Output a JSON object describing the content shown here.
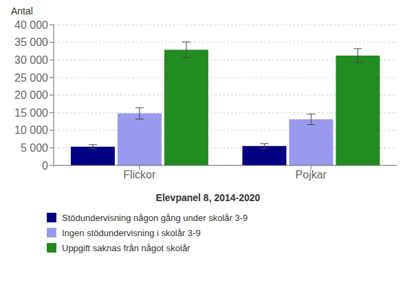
{
  "chart_data": {
    "type": "bar",
    "subtitle": "Elevpanel 8, 2014-2020",
    "ylabel": "Antal",
    "categories": [
      "Flickor",
      "Pojkar"
    ],
    "series": [
      {
        "name": "Stödundervisning någon gång under skolår 3-9",
        "color": "#000080",
        "values": [
          5300,
          5500
        ],
        "errors": [
          600,
          700
        ]
      },
      {
        "name": "Ingen stödundervisning i skolår 3-9",
        "color": "#9999EE",
        "values": [
          14800,
          13100
        ],
        "errors": [
          1600,
          1500
        ]
      },
      {
        "name": "Uppgift saknas från något skolår",
        "color": "#228B22",
        "values": [
          32900,
          31200
        ],
        "errors": [
          2200,
          2000
        ]
      }
    ],
    "ylim": [
      0,
      40000
    ],
    "yticks": [
      0,
      {
        "value": 5000,
        "label": "5 000"
      },
      {
        "value": 10000,
        "label": "10 000"
      },
      {
        "value": 15000,
        "label": "15 000"
      },
      {
        "value": 20000,
        "label": "20 000"
      },
      {
        "value": 25000,
        "label": "25 000"
      },
      {
        "value": 30000,
        "label": "30 000"
      },
      {
        "value": 35000,
        "label": "35 000"
      },
      {
        "value": 40000,
        "label": "40 000"
      }
    ],
    "grid": true,
    "legend": "bottom"
  }
}
